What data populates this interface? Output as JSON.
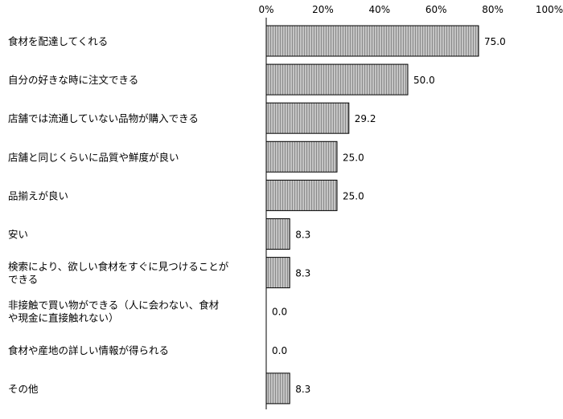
{
  "chart_data": {
    "type": "bar",
    "orientation": "horizontal",
    "categories": [
      [
        "食材を配達してくれる"
      ],
      [
        "自分の好きな時に注文できる"
      ],
      [
        "店舗では流通していない品物が購入できる"
      ],
      [
        "店舗と同じくらいに品質や鮮度が良い"
      ],
      [
        "品揃えが良い"
      ],
      [
        "安い"
      ],
      [
        "検索により、欲しい食材をすぐに見つけることが",
        "できる"
      ],
      [
        "非接触で買い物ができる（人に会わない、食材",
        "や現金に直接触れない）"
      ],
      [
        "食材や産地の詳しい情報が得られる"
      ],
      [
        "その他"
      ]
    ],
    "values": [
      75.0,
      50.0,
      29.2,
      25.0,
      25.0,
      8.3,
      8.3,
      0.0,
      0.0,
      8.3
    ],
    "value_labels": [
      "75.0",
      "50.0",
      "29.2",
      "25.0",
      "25.0",
      "8.3",
      "8.3",
      "0.0",
      "0.0",
      "8.3"
    ],
    "xlim": [
      0,
      100
    ],
    "ticks": [
      "0%",
      "20%",
      "40%",
      "60%",
      "80%",
      "100%"
    ],
    "title": "",
    "xlabel": "",
    "ylabel": "",
    "grid": false,
    "legend": "none",
    "colors": {
      "bar_fill": "#c4c4c4",
      "bar_stripe": "#8a8a8a",
      "bar_stroke": "#000000",
      "axis": "#000000"
    }
  }
}
